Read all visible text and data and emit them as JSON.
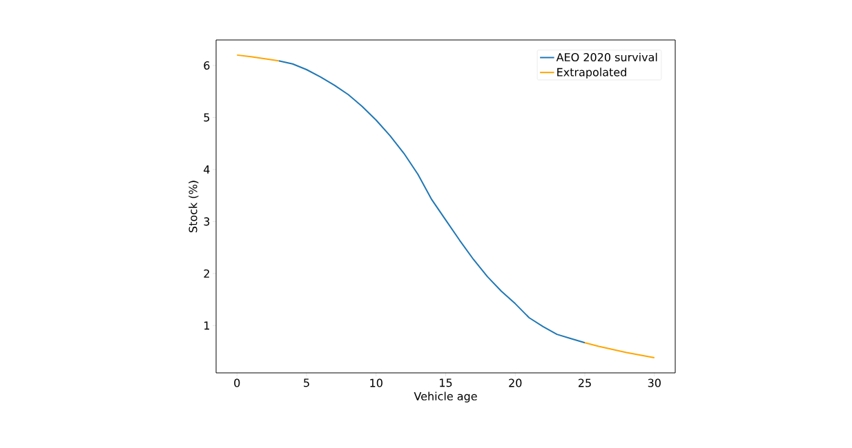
{
  "chart_data": {
    "type": "line",
    "xlabel": "Vehicle age",
    "ylabel": "Stock (%)",
    "xlim": [
      -1.5,
      31.5
    ],
    "xticks": [
      0,
      5,
      10,
      15,
      20,
      25,
      30
    ],
    "ylim": [
      0.09,
      6.49
    ],
    "yticks": [
      1,
      2,
      3,
      4,
      5,
      6
    ],
    "legend": "top right",
    "grid": false,
    "line_style": "solid",
    "series": [
      {
        "name": "AEO 2020 survival",
        "color": "#1f77b4",
        "x": [
          3,
          4,
          5,
          6,
          7,
          8,
          9,
          10,
          11,
          12,
          13,
          14,
          15,
          16,
          17,
          18,
          19,
          20,
          21,
          22,
          23,
          24,
          25
        ],
        "values": [
          6.09,
          6.03,
          5.92,
          5.78,
          5.62,
          5.44,
          5.21,
          4.95,
          4.65,
          4.31,
          3.91,
          3.42,
          3.03,
          2.64,
          2.27,
          1.94,
          1.66,
          1.42,
          1.15,
          0.98,
          0.83,
          0.75,
          0.67
        ]
      },
      {
        "name": "Extrapolated",
        "color": "#ffa500",
        "x": [
          0,
          1,
          2,
          3,
          4,
          24,
          25,
          26,
          27,
          28,
          29,
          30
        ],
        "values": [
          6.2,
          6.17,
          6.13,
          6.09,
          null,
          null,
          0.67,
          0.6,
          0.54,
          0.48,
          0.43,
          0.38
        ]
      }
    ]
  }
}
